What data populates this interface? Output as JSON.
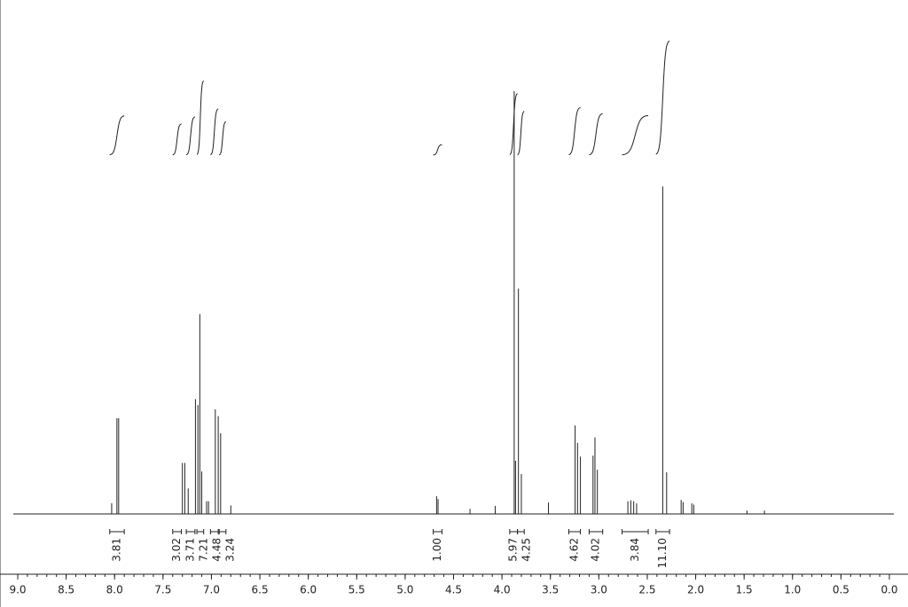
{
  "chart_data": {
    "type": "stem",
    "color": "#222222",
    "xlim": [
      9.0,
      0.0
    ],
    "ylim": [
      0,
      100
    ],
    "xticks": [
      {
        "value": 9.0,
        "label": "9.0"
      },
      8.5,
      {
        "value": 8.0,
        "label": "8.0"
      },
      7.5,
      {
        "value": 7.0,
        "label": "7.0"
      },
      6.5,
      {
        "value": 6.0,
        "label": "6.0"
      },
      5.5,
      {
        "value": 5.0,
        "label": "5.0"
      },
      4.5,
      {
        "value": 4.0,
        "label": "4.0"
      },
      3.5,
      {
        "value": 3.0,
        "label": "3.0"
      },
      2.5,
      {
        "value": 2.0,
        "label": "2.0"
      },
      1.5,
      {
        "value": 1.0,
        "label": "1.0"
      },
      0.5,
      {
        "value": 0.0,
        "label": "0.0"
      }
    ],
    "minor_xticks": [
      9.0,
      8.9,
      8.8,
      8.7,
      8.6,
      8.5,
      8.4,
      8.3,
      8.2,
      8.1,
      8.0,
      7.9,
      7.8,
      7.7,
      7.6,
      7.5,
      7.4,
      7.3,
      7.2,
      7.1,
      7.0,
      6.9,
      6.8,
      6.7,
      6.6,
      6.5,
      6.4,
      6.3,
      6.2,
      6.1,
      6.0,
      5.9,
      5.8,
      5.7,
      5.6,
      5.5,
      5.4,
      5.3,
      5.2,
      5.1,
      5.0,
      4.9,
      4.8,
      4.7,
      4.6,
      4.5,
      4.4,
      4.3,
      4.2,
      4.1,
      4.0,
      3.9,
      3.8,
      3.7,
      3.6,
      3.5,
      3.4,
      3.3,
      3.2,
      3.1,
      3.0,
      2.9,
      2.8,
      2.7,
      2.6,
      2.5,
      2.4,
      2.3,
      2.2,
      2.1,
      2.0,
      1.9,
      1.8,
      1.7,
      1.6,
      1.5,
      1.4,
      1.3,
      1.2,
      1.1,
      1.0,
      0.9,
      0.8,
      0.7,
      0.6,
      0.5,
      0.4,
      0.3,
      0.2,
      0.1,
      0.0
    ],
    "peaks": {
      "x": [
        8.03,
        7.976,
        7.958,
        7.3,
        7.275,
        7.24,
        7.165,
        7.14,
        7.12,
        7.1,
        7.05,
        7.03,
        6.96,
        6.93,
        6.905,
        6.8,
        4.675,
        4.66,
        4.33,
        4.07,
        3.874,
        3.86,
        3.83,
        3.8,
        3.52,
        3.245,
        3.22,
        3.19,
        3.06,
        3.04,
        3.015,
        2.7,
        2.67,
        2.64,
        2.61,
        2.34,
        2.3,
        2.15,
        2.13,
        2.04,
        2.02,
        1.47,
        1.29
      ],
      "values": [
        2.5,
        22.5,
        22.5,
        12,
        12,
        6,
        27,
        25.6,
        47,
        10,
        3,
        3,
        24.6,
        23,
        19,
        2,
        4.2,
        3.5,
        1.2,
        1.9,
        99.4,
        12.5,
        53,
        9.4,
        2.7,
        20.8,
        16.7,
        13.5,
        13.7,
        18,
        10.4,
        3,
        3.2,
        3,
        2.5,
        77,
        9.8,
        3.3,
        2.8,
        2.5,
        2.2,
        0.8,
        0.8
      ]
    },
    "integrals": {
      "values": [
        3.81,
        3.02,
        3.71,
        7.21,
        4.48,
        3.24,
        1.0,
        5.97,
        4.25,
        4.62,
        4.02,
        3.84,
        11.1
      ],
      "value_labels": [
        "3.81",
        "3.02",
        "3.71",
        "7.21",
        "4.48",
        "3.24",
        "1.00",
        "5.97",
        "4.25",
        "4.62",
        "4.02",
        "3.84",
        "11.10"
      ],
      "ranges": [
        [
          8.05,
          7.9
        ],
        [
          7.4,
          7.31
        ],
        [
          7.26,
          7.17
        ],
        [
          7.15,
          7.08
        ],
        [
          7.01,
          6.93
        ],
        [
          6.92,
          6.85
        ],
        [
          4.71,
          4.62
        ],
        [
          3.92,
          3.84
        ],
        [
          3.84,
          3.77
        ],
        [
          3.31,
          3.19
        ],
        [
          3.1,
          2.96
        ],
        [
          2.76,
          2.49
        ],
        [
          2.41,
          2.27
        ]
      ]
    }
  }
}
